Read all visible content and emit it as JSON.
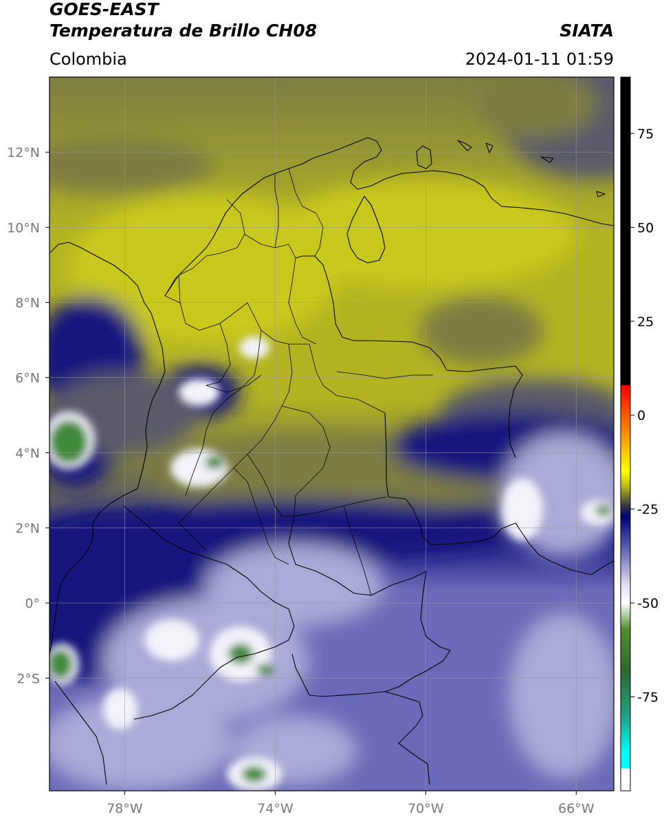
{
  "header": {
    "satellite": "GOES-EAST",
    "product": "Temperatura de Brillo CH08",
    "region": "Colombia",
    "organization": "SIATA",
    "datetime": "2024-01-11 01:59"
  },
  "map": {
    "lon_range": [
      -80,
      -65
    ],
    "lat_range": [
      -5,
      14
    ],
    "lon_ticks": [
      {
        "value": -78,
        "label": "78°W"
      },
      {
        "value": -74,
        "label": "74°W"
      },
      {
        "value": -70,
        "label": "70°W"
      },
      {
        "value": -66,
        "label": "66°W"
      }
    ],
    "lat_ticks": [
      {
        "value": 12,
        "label": "12°N"
      },
      {
        "value": 10,
        "label": "10°N"
      },
      {
        "value": 8,
        "label": "8°N"
      },
      {
        "value": 6,
        "label": "6°N"
      },
      {
        "value": 4,
        "label": "4°N"
      },
      {
        "value": 2,
        "label": "2°N"
      },
      {
        "value": 0,
        "label": "0°"
      },
      {
        "value": -2,
        "label": "2°S"
      }
    ],
    "gridlines": true
  },
  "colorbar": {
    "range": [
      -100,
      90
    ],
    "ticks": [
      {
        "value": 75,
        "label": "75"
      },
      {
        "value": 50,
        "label": "50"
      },
      {
        "value": 25,
        "label": "25"
      },
      {
        "value": 0,
        "label": "0"
      },
      {
        "value": -25,
        "label": "-25"
      },
      {
        "value": -50,
        "label": "-50"
      },
      {
        "value": -75,
        "label": "-75"
      }
    ],
    "stops": [
      {
        "value": 90,
        "color": "#000000"
      },
      {
        "value": 8,
        "color": "#000000"
      },
      {
        "value": 7.9,
        "color": "#ff0000"
      },
      {
        "value": 0,
        "color": "#ff5a00"
      },
      {
        "value": -8,
        "color": "#ffb000"
      },
      {
        "value": -15,
        "color": "#ffff00"
      },
      {
        "value": -19,
        "color": "#b8b820"
      },
      {
        "value": -24,
        "color": "#3a3a3a"
      },
      {
        "value": -27,
        "color": "#00007a"
      },
      {
        "value": -35,
        "color": "#5a5ab0"
      },
      {
        "value": -45,
        "color": "#ddddee"
      },
      {
        "value": -50,
        "color": "#ffffff"
      },
      {
        "value": -57,
        "color": "#4e8f2e"
      },
      {
        "value": -68,
        "color": "#2d6a2d"
      },
      {
        "value": -80,
        "color": "#20a080"
      },
      {
        "value": -90,
        "color": "#00ffff"
      },
      {
        "value": -94,
        "color": "#00ffff"
      },
      {
        "value": -94.1,
        "color": "#ffffff"
      },
      {
        "value": -100,
        "color": "#ffffff"
      }
    ]
  },
  "fields": {
    "warm_clear": "#b3b322",
    "bright_warm": "#c9c81c",
    "dark_warm": "#7d7d42",
    "grey_cloud": "#5a5a6a",
    "navy_band": "#12127e",
    "cold_cloud": "#6a6ab8",
    "cold_light": "#aaaad8",
    "very_cold": "#f3f3fa",
    "deep_core": "#3f8a3a",
    "border": "#000000",
    "grid": "#9a9a9a"
  }
}
